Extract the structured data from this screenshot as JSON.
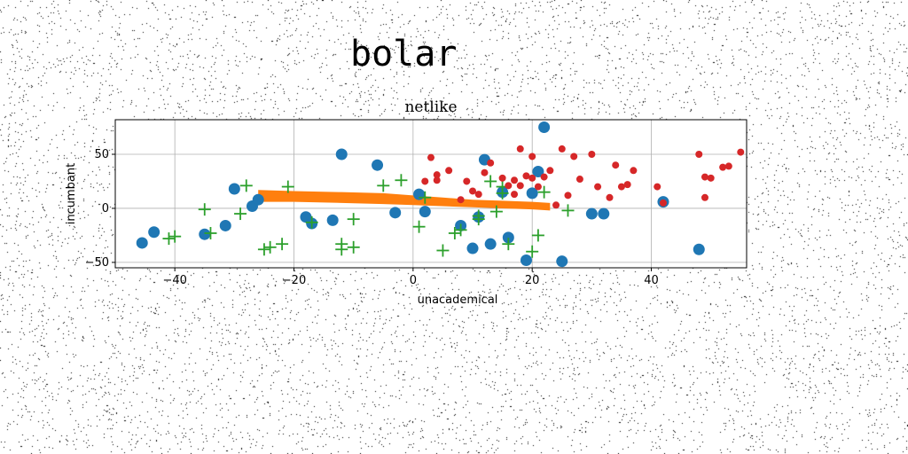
{
  "figure": {
    "suptitle": "bolar"
  },
  "chart_data": {
    "type": "scatter",
    "title": "netlike",
    "xlabel": "unacademical",
    "ylabel": "incumbant",
    "xlim": [
      -50,
      56
    ],
    "ylim": [
      -55,
      82
    ],
    "xticks": [
      -40,
      -20,
      0,
      20,
      40
    ],
    "yticks": [
      -50,
      0,
      50
    ],
    "grid": true,
    "colors": {
      "blue": "#1f77b4",
      "orange": "#ff7f0e",
      "green": "#2ca02c",
      "red": "#d62728"
    },
    "series": [
      {
        "marker": "circle-large",
        "color": "#1f77b4",
        "points": [
          [
            -45.5,
            -32
          ],
          [
            -43.5,
            -22
          ],
          [
            -35,
            -24
          ],
          [
            -31.5,
            -16
          ],
          [
            -30,
            18
          ],
          [
            -27,
            2
          ],
          [
            -26,
            8
          ],
          [
            -18,
            -8
          ],
          [
            -17,
            -14
          ],
          [
            -13.5,
            -11
          ],
          [
            -12,
            50
          ],
          [
            -6,
            40
          ],
          [
            -3,
            -4
          ],
          [
            1,
            13
          ],
          [
            2,
            -3
          ],
          [
            8,
            -16
          ],
          [
            10,
            -37
          ],
          [
            11,
            -8
          ],
          [
            12,
            45
          ],
          [
            13,
            -33
          ],
          [
            15,
            15
          ],
          [
            16,
            -27
          ],
          [
            19,
            -48
          ],
          [
            20,
            14
          ],
          [
            21,
            34
          ],
          [
            22,
            75
          ],
          [
            25,
            -49
          ],
          [
            30,
            -5
          ],
          [
            32,
            -5
          ],
          [
            42,
            6
          ],
          [
            48,
            -38
          ]
        ]
      },
      {
        "marker": "plus",
        "color": "#2ca02c",
        "points": [
          [
            -41,
            -28
          ],
          [
            -40,
            -26
          ],
          [
            -35,
            -1
          ],
          [
            -34,
            -23
          ],
          [
            -29,
            -5
          ],
          [
            -28,
            21
          ],
          [
            -25,
            -38
          ],
          [
            -24,
            -36
          ],
          [
            -22,
            -33
          ],
          [
            -21,
            20
          ],
          [
            -17,
            -13
          ],
          [
            -12,
            -38
          ],
          [
            -12,
            -33
          ],
          [
            -10,
            -10
          ],
          [
            -10,
            -36
          ],
          [
            -5,
            21
          ],
          [
            -2,
            26
          ],
          [
            1,
            -17
          ],
          [
            2,
            10
          ],
          [
            5,
            -39
          ],
          [
            7,
            -23
          ],
          [
            8,
            -20
          ],
          [
            11,
            -10
          ],
          [
            11,
            -7
          ],
          [
            13,
            25
          ],
          [
            14,
            -3
          ],
          [
            15,
            20
          ],
          [
            15,
            14
          ],
          [
            16,
            -33
          ],
          [
            20,
            -40
          ],
          [
            21,
            -25
          ],
          [
            22,
            15
          ],
          [
            26,
            -2
          ]
        ]
      },
      {
        "marker": "circle-small",
        "color": "#d62728",
        "points": [
          [
            2,
            25
          ],
          [
            3,
            47
          ],
          [
            4,
            26
          ],
          [
            4,
            31
          ],
          [
            6,
            35
          ],
          [
            8,
            8
          ],
          [
            9,
            25
          ],
          [
            10,
            16
          ],
          [
            11,
            13
          ],
          [
            12,
            33
          ],
          [
            13,
            42
          ],
          [
            15,
            28
          ],
          [
            16,
            21
          ],
          [
            17,
            13
          ],
          [
            17,
            26
          ],
          [
            18,
            55
          ],
          [
            18,
            21
          ],
          [
            19,
            30
          ],
          [
            20,
            48
          ],
          [
            20,
            28
          ],
          [
            21,
            20
          ],
          [
            22,
            29
          ],
          [
            23,
            35
          ],
          [
            24,
            3
          ],
          [
            25,
            55
          ],
          [
            26,
            12
          ],
          [
            27,
            48
          ],
          [
            28,
            27
          ],
          [
            30,
            50
          ],
          [
            31,
            20
          ],
          [
            33,
            10
          ],
          [
            34,
            40
          ],
          [
            35,
            20
          ],
          [
            36,
            22
          ],
          [
            37,
            35
          ],
          [
            41,
            20
          ],
          [
            42,
            5
          ],
          [
            48,
            50
          ],
          [
            49,
            10
          ],
          [
            49,
            29
          ],
          [
            50,
            28
          ],
          [
            52,
            38
          ],
          [
            53,
            39
          ],
          [
            55,
            52
          ]
        ]
      },
      {
        "marker": "band",
        "color": "#ff7f0e",
        "points": [
          [
            -26,
            6
          ],
          [
            -20,
            6
          ],
          [
            -12,
            5
          ],
          [
            -5,
            4
          ],
          [
            0,
            3
          ],
          [
            5,
            2
          ],
          [
            10,
            1
          ],
          [
            15,
            0
          ],
          [
            20,
            -1
          ],
          [
            23,
            -2
          ],
          [
            -26,
            17
          ],
          [
            -20,
            16
          ],
          [
            -12,
            15
          ],
          [
            -5,
            14
          ],
          [
            0,
            12
          ],
          [
            5,
            10
          ],
          [
            10,
            8
          ],
          [
            15,
            7
          ],
          [
            20,
            6
          ],
          [
            23,
            5
          ]
        ]
      }
    ]
  }
}
